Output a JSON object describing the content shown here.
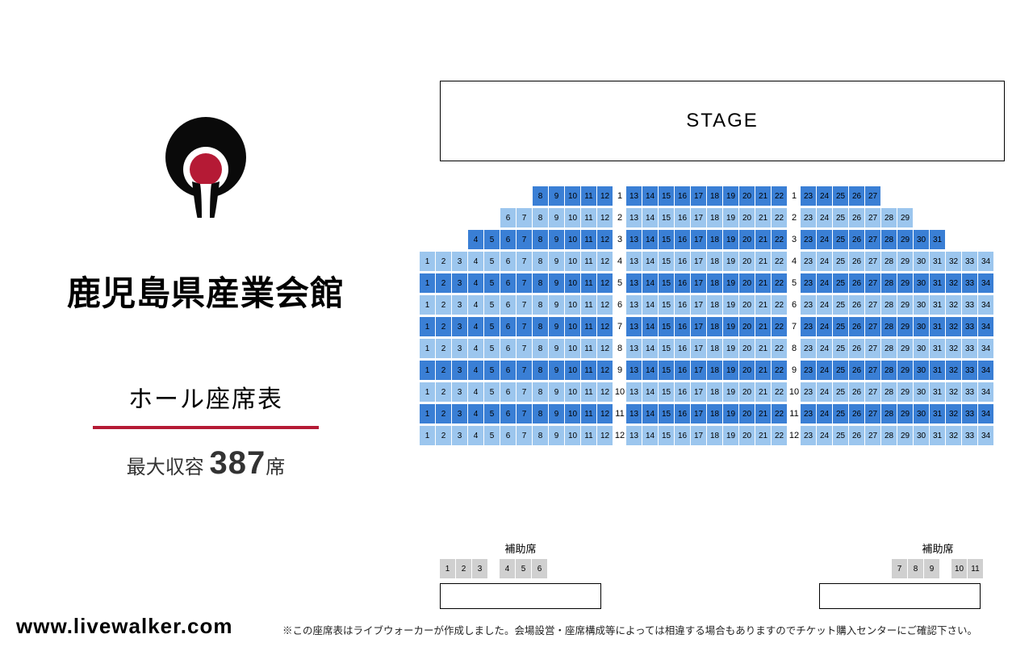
{
  "venue": {
    "name": "鹿児島県産業会館",
    "subtitle": "ホール座席表",
    "capacity_label": "最大収容",
    "capacity_num": "387",
    "capacity_suffix": "席"
  },
  "stage": {
    "label": "STAGE"
  },
  "footer": {
    "url": "www.livewalker.com",
    "disclaimer": "※この座席表はライブウォーカーが作成しました。会場設営・座席構成等によっては相違する場合もありますのでチケット購入センターにご確認下さい。"
  },
  "colors": {
    "dark": "#3a7fd5",
    "light": "#9cc6ee",
    "extra": "#d0d0d0",
    "divider": "#b51a35",
    "logo_black": "#0a0a0a",
    "logo_red": "#b51a35"
  },
  "seating": {
    "left_block": {
      "from": 1,
      "to": 12
    },
    "mid_block": {
      "from": 13,
      "to": 22
    },
    "right_block": {
      "from": 23,
      "to": 34
    },
    "rows": [
      {
        "n": 1,
        "left_from": 8,
        "right_to": 27,
        "style": "dark"
      },
      {
        "n": 2,
        "left_from": 6,
        "right_to": 29,
        "style": "light"
      },
      {
        "n": 3,
        "left_from": 4,
        "right_to": 31,
        "style": "dark"
      },
      {
        "n": 4,
        "left_from": 1,
        "right_to": 34,
        "style": "light"
      },
      {
        "n": 5,
        "left_from": 1,
        "right_to": 34,
        "style": "dark"
      },
      {
        "n": 6,
        "left_from": 1,
        "right_to": 34,
        "style": "light"
      },
      {
        "n": 7,
        "left_from": 1,
        "right_to": 34,
        "style": "dark"
      },
      {
        "n": 8,
        "left_from": 1,
        "right_to": 34,
        "style": "light"
      },
      {
        "n": 9,
        "left_from": 1,
        "right_to": 34,
        "style": "dark"
      },
      {
        "n": 10,
        "left_from": 1,
        "right_to": 34,
        "style": "light"
      },
      {
        "n": 11,
        "left_from": 1,
        "right_to": 34,
        "style": "dark"
      },
      {
        "n": 12,
        "left_from": 1,
        "right_to": 34,
        "style": "light"
      }
    ]
  },
  "extra": {
    "label": "補助席",
    "left": {
      "groups": [
        [
          1,
          2,
          3
        ],
        [
          4,
          5,
          6
        ]
      ]
    },
    "right": {
      "groups": [
        [
          7,
          8,
          9
        ],
        [
          10,
          11
        ]
      ]
    }
  }
}
